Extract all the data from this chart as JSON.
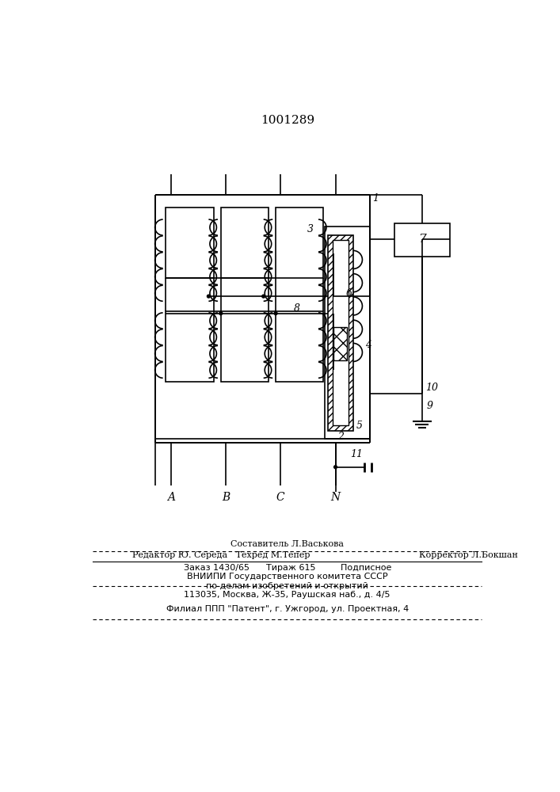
{
  "patent_number": "1001289",
  "bg_color": "#ffffff",
  "labels": {
    "node1": "1",
    "node2": "2",
    "node3": "3",
    "node4": "4",
    "node5": "5",
    "node6": "6",
    "node7": "7",
    "node8": "8",
    "node9": "9",
    "node10": "10",
    "node11": "11",
    "labelA": "A",
    "labelB": "B",
    "labelC": "C",
    "labelN": "N"
  },
  "footer": {
    "line1": "Составитель Л.Васькова",
    "line2": "Редактор Ю. Середа   Техред М.Тепер",
    "line2r": "Корректор Л.Бокшан",
    "line3": "Заказ 1430/65      Тираж 615         Подписное",
    "line4": "ВНИИПИ Государственного комитета СССР",
    "line5": "по делам изобретений и открытий",
    "line6": "113035, Москва, Ж-35, Раушская наб., д. 4/5",
    "line7": "Филиал ППП \"Патент\", г. Ужгород, ул. Проектная, 4"
  }
}
